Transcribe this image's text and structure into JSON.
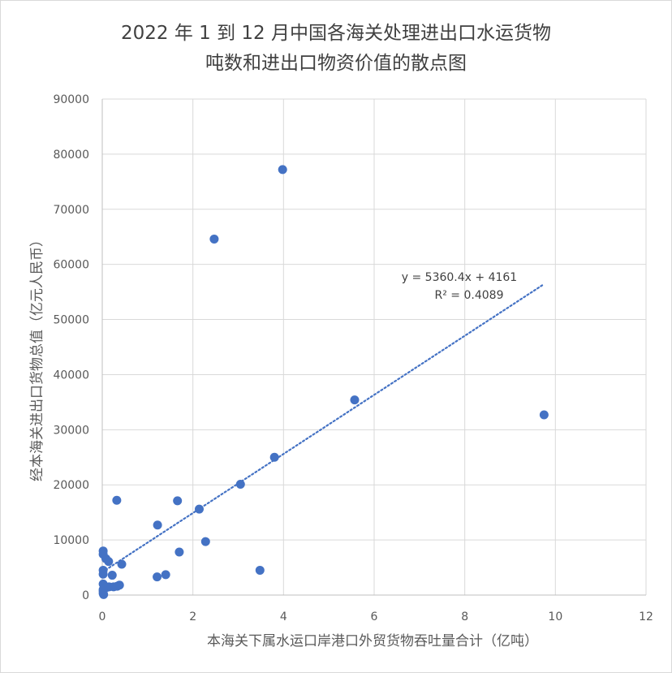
{
  "chart_data": {
    "type": "scatter",
    "title_lines": [
      "2022 年 1 到 12 月中国各海关处理进出口水运货物",
      "吨数和进出口物资价值的散点图"
    ],
    "xlabel": "本海关下属水运口岸港口外贸货物吞吐量合计（亿吨）",
    "ylabel": "经本海关进出口货物总值（亿元人民币）",
    "xlim": [
      0,
      12
    ],
    "ylim": [
      0,
      90000
    ],
    "x_ticks": [
      0,
      2,
      4,
      6,
      8,
      10,
      12
    ],
    "y_ticks": [
      0,
      10000,
      20000,
      30000,
      40000,
      50000,
      60000,
      70000,
      80000,
      90000
    ],
    "grid": true,
    "marker_color": "#4472c4",
    "trendline": {
      "type": "linear",
      "slope": 5360.4,
      "intercept": 4161,
      "x_range": [
        0,
        9.75
      ],
      "equation": "y = 5360.4x + 4161",
      "r2_label": "R² = 0.4089",
      "color": "#4472c4",
      "style": "dotted"
    },
    "points": [
      {
        "x": 9.75,
        "y": 32700
      },
      {
        "x": 3.98,
        "y": 77200
      },
      {
        "x": 2.47,
        "y": 64600
      },
      {
        "x": 5.57,
        "y": 35400
      },
      {
        "x": 3.8,
        "y": 25000
      },
      {
        "x": 3.05,
        "y": 20100
      },
      {
        "x": 2.14,
        "y": 15600
      },
      {
        "x": 1.66,
        "y": 17100
      },
      {
        "x": 0.32,
        "y": 17200
      },
      {
        "x": 1.22,
        "y": 12700
      },
      {
        "x": 2.28,
        "y": 9700
      },
      {
        "x": 1.7,
        "y": 7800
      },
      {
        "x": 1.4,
        "y": 3700
      },
      {
        "x": 1.21,
        "y": 3300
      },
      {
        "x": 3.48,
        "y": 4500
      },
      {
        "x": 0.43,
        "y": 5600
      },
      {
        "x": 0.02,
        "y": 8000
      },
      {
        "x": 0.02,
        "y": 7400
      },
      {
        "x": 0.08,
        "y": 6600
      },
      {
        "x": 0.14,
        "y": 6100
      },
      {
        "x": 0.22,
        "y": 3600
      },
      {
        "x": 0.02,
        "y": 4500
      },
      {
        "x": 0.02,
        "y": 3800
      },
      {
        "x": 0.02,
        "y": 2000
      },
      {
        "x": 0.05,
        "y": 1600
      },
      {
        "x": 0.1,
        "y": 1400
      },
      {
        "x": 0.15,
        "y": 1500
      },
      {
        "x": 0.25,
        "y": 1500
      },
      {
        "x": 0.33,
        "y": 1600
      },
      {
        "x": 0.38,
        "y": 1800
      },
      {
        "x": 0.02,
        "y": 1000
      },
      {
        "x": 0.02,
        "y": 700
      },
      {
        "x": 0.02,
        "y": 300
      },
      {
        "x": 0.03,
        "y": 100
      }
    ]
  }
}
